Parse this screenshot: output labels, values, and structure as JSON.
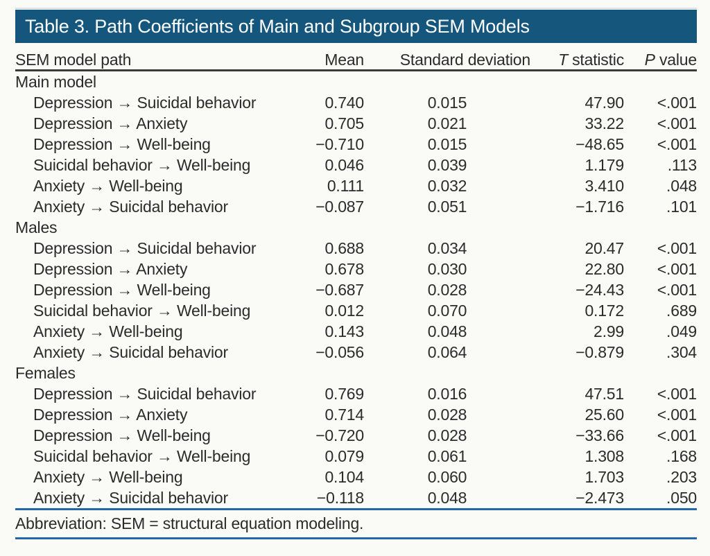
{
  "title": "Table 3. Path Coefficients of Main and Subgroup SEM Models",
  "columns": [
    {
      "em": "",
      "rest": "SEM model path"
    },
    {
      "em": "",
      "rest": "Mean"
    },
    {
      "em": "",
      "rest": "Standard deviation"
    },
    {
      "em": "T",
      "rest": " statistic"
    },
    {
      "em": "P",
      "rest": " value"
    }
  ],
  "sections": [
    {
      "label": "Main model",
      "rows": [
        [
          "Depression → Suicidal behavior",
          "0.740",
          "0.015",
          "47.90",
          "<.001"
        ],
        [
          "Depression → Anxiety",
          "0.705",
          "0.021",
          "33.22",
          "<.001"
        ],
        [
          "Depression → Well-being",
          "−0.710",
          "0.015",
          "−48.65",
          "<.001"
        ],
        [
          "Suicidal behavior → Well-being",
          "0.046",
          "0.039",
          "1.179",
          ".113"
        ],
        [
          "Anxiety → Well-being",
          "0.111",
          "0.032",
          "3.410",
          ".048"
        ],
        [
          "Anxiety → Suicidal behavior",
          "−0.087",
          "0.051",
          "−1.716",
          ".101"
        ]
      ]
    },
    {
      "label": "Males",
      "rows": [
        [
          "Depression → Suicidal behavior",
          "0.688",
          "0.034",
          "20.47",
          "<.001"
        ],
        [
          "Depression → Anxiety",
          "0.678",
          "0.030",
          "22.80",
          "<.001"
        ],
        [
          "Depression → Well-being",
          "−0.687",
          "0.028",
          "−24.43",
          "<.001"
        ],
        [
          "Suicidal behavior → Well-being",
          "0.012",
          "0.070",
          "0.172",
          ".689"
        ],
        [
          "Anxiety → Well-being",
          "0.143",
          "0.048",
          "2.99",
          ".049"
        ],
        [
          "Anxiety → Suicidal behavior",
          "−0.056",
          "0.064",
          "−0.879",
          ".304"
        ]
      ]
    },
    {
      "label": "Females",
      "rows": [
        [
          "Depression → Suicidal behavior",
          "0.769",
          "0.016",
          "47.51",
          "<.001"
        ],
        [
          "Depression → Anxiety",
          "0.714",
          "0.028",
          "25.60",
          "<.001"
        ],
        [
          "Depression → Well-being",
          "−0.720",
          "0.028",
          "−33.66",
          "<.001"
        ],
        [
          "Suicidal behavior → Well-being",
          "0.079",
          "0.061",
          "1.308",
          ".168"
        ],
        [
          "Anxiety → Well-being",
          "0.104",
          "0.060",
          "1.703",
          ".203"
        ],
        [
          "Anxiety → Suicidal behavior",
          "−0.118",
          "0.048",
          "−2.473",
          ".050"
        ]
      ]
    }
  ],
  "footnote": "Abbreviation: SEM = structural equation modeling.",
  "colors": {
    "title_bar_bg": "#15567d",
    "title_text": "#ffffff",
    "body_text": "#2b2b2b",
    "header_rule": "#3a3a3a",
    "rule_blue": "#2268a8",
    "background": "#fafbf7"
  }
}
